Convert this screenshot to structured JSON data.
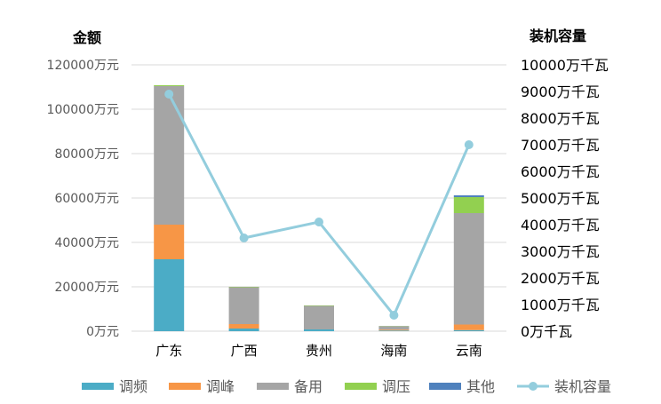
{
  "chart_data": {
    "type": "bar",
    "left_title": "金额",
    "right_title": "装机容量",
    "categories": [
      "广东",
      "广西",
      "贵州",
      "海南",
      "云南"
    ],
    "left_ticks": [
      "0万元",
      "20000万元",
      "40000万元",
      "60000万元",
      "80000万元",
      "100000万元",
      "120000万元"
    ],
    "right_ticks": [
      "0万千瓦",
      "1000万千瓦",
      "2000万千瓦",
      "3000万千瓦",
      "4000万千瓦",
      "5000万千瓦",
      "6000万千瓦",
      "7000万千瓦",
      "8000万千瓦",
      "9000万千瓦",
      "10000万千瓦"
    ],
    "ylim": [
      0,
      120000
    ],
    "y2lim": [
      0,
      10000
    ],
    "grid": true,
    "legend_position": "bottom",
    "series": [
      {
        "name": "调频",
        "type": "bar",
        "color": "#4bacc6",
        "values": [
          32400,
          1200,
          800,
          300,
          500
        ]
      },
      {
        "name": "调峰",
        "type": "bar",
        "color": "#f79646",
        "values": [
          15600,
          2000,
          0,
          400,
          2500
        ]
      },
      {
        "name": "备用",
        "type": "bar",
        "color": "#a5a5a5",
        "values": [
          62400,
          16600,
          10600,
          1600,
          50200
        ]
      },
      {
        "name": "调压",
        "type": "bar",
        "color": "#92d050",
        "values": [
          400,
          200,
          200,
          100,
          7200
        ]
      },
      {
        "name": "其他",
        "type": "bar",
        "color": "#4f81bd",
        "values": [
          0,
          0,
          0,
          0,
          800
        ]
      },
      {
        "name": "装机容量",
        "type": "line",
        "axis": "right",
        "color": "#93cddd",
        "values": [
          8900,
          3500,
          4100,
          600,
          7000
        ]
      }
    ]
  }
}
